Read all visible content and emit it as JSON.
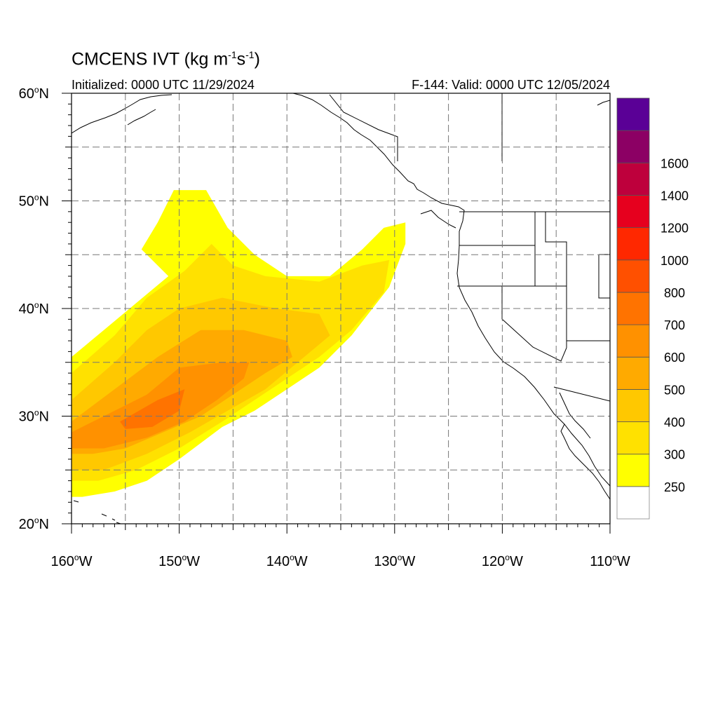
{
  "header": {
    "title_prefix": "CMCENS IVT (kg m",
    "title_exp1": "-1",
    "title_mid": "s",
    "title_exp2": "-1",
    "title_suffix": ")",
    "initialized": "Initialized: 0000 UTC 11/29/2024",
    "valid": "F-144: Valid: 0000 UTC 12/05/2024"
  },
  "axes": {
    "lon_labels": [
      "160",
      "150",
      "140",
      "130",
      "120",
      "110"
    ],
    "lon_suffix": "W",
    "lat_labels": [
      "60",
      "50",
      "40",
      "30",
      "20"
    ],
    "lat_suffix": "N",
    "degree": "o",
    "lon_range": [
      -160,
      -110
    ],
    "lat_range": [
      20,
      60
    ],
    "grid": true
  },
  "colorbar": {
    "labels": [
      "250",
      "300",
      "400",
      "500",
      "600",
      "700",
      "800",
      "1000",
      "1200",
      "1400",
      "1600"
    ],
    "colors": [
      "#ffffff",
      "#ffff00",
      "#ffe100",
      "#ffc800",
      "#ffaa00",
      "#ff9100",
      "#ff7300",
      "#ff5000",
      "#ff2800",
      "#e6001e",
      "#be003c",
      "#8c0064",
      "#5a0096"
    ]
  },
  "ivt_field": {
    "levels": [
      250,
      300,
      400,
      500,
      600,
      700
    ],
    "contours": [
      [
        [
          -160,
          35.5
        ],
        [
          -157,
          38
        ],
        [
          -154,
          40.5
        ],
        [
          -151,
          43
        ],
        [
          -153.5,
          45.5
        ],
        [
          -152,
          48
        ],
        [
          -150.5,
          51
        ],
        [
          -147.5,
          51
        ],
        [
          -145.5,
          47.5
        ],
        [
          -143,
          45
        ],
        [
          -140,
          43
        ],
        [
          -136,
          43
        ],
        [
          -133,
          45.5
        ],
        [
          -131,
          47.5
        ],
        [
          -129,
          48
        ],
        [
          -129,
          46
        ],
        [
          -130.5,
          42
        ],
        [
          -134,
          37.5
        ],
        [
          -137,
          34.5
        ],
        [
          -140,
          32.5
        ],
        [
          -143,
          30.5
        ],
        [
          -146,
          29
        ],
        [
          -150,
          26
        ],
        [
          -153,
          24
        ],
        [
          -156,
          23
        ],
        [
          -159,
          22.5
        ],
        [
          -160,
          22.5
        ]
      ],
      [
        [
          -160,
          34
        ],
        [
          -156,
          37.5
        ],
        [
          -153,
          41
        ],
        [
          -149.5,
          43.5
        ],
        [
          -147,
          46
        ],
        [
          -145,
          44
        ],
        [
          -142,
          43
        ],
        [
          -137,
          42.5
        ],
        [
          -133,
          44
        ],
        [
          -130.5,
          44.5
        ],
        [
          -131,
          41.5
        ],
        [
          -134,
          38
        ],
        [
          -137,
          35.5
        ],
        [
          -140,
          33.5
        ],
        [
          -143,
          31.5
        ],
        [
          -146,
          29.5
        ],
        [
          -150,
          27
        ],
        [
          -154,
          25
        ],
        [
          -157.5,
          24
        ],
        [
          -160,
          24
        ]
      ],
      [
        [
          -160,
          31.5
        ],
        [
          -156,
          35
        ],
        [
          -153,
          38
        ],
        [
          -150,
          40
        ],
        [
          -146,
          41
        ],
        [
          -141,
          40
        ],
        [
          -137,
          39.5
        ],
        [
          -136,
          37.5
        ],
        [
          -139,
          35
        ],
        [
          -142,
          32.5
        ],
        [
          -145.5,
          30.5
        ],
        [
          -149,
          28.5
        ],
        [
          -153,
          26.5
        ],
        [
          -157,
          25
        ],
        [
          -160,
          25
        ]
      ],
      [
        [
          -160,
          29.5
        ],
        [
          -156,
          32.5
        ],
        [
          -152,
          35.5
        ],
        [
          -148,
          38
        ],
        [
          -144,
          38
        ],
        [
          -140,
          37
        ],
        [
          -139.5,
          35.5
        ],
        [
          -142,
          34
        ],
        [
          -145,
          32
        ],
        [
          -148,
          30
        ],
        [
          -151.5,
          28.5
        ],
        [
          -155,
          27
        ],
        [
          -158,
          26.5
        ],
        [
          -160,
          26.5
        ]
      ],
      [
        [
          -160,
          28.5
        ],
        [
          -157,
          30
        ],
        [
          -153,
          32
        ],
        [
          -150,
          34.5
        ],
        [
          -146,
          35
        ],
        [
          -143.5,
          35
        ],
        [
          -144,
          33.5
        ],
        [
          -146.5,
          31.5
        ],
        [
          -149.5,
          29.5
        ],
        [
          -153,
          28
        ],
        [
          -157,
          27
        ],
        [
          -160,
          27
        ]
      ],
      [
        [
          -155.5,
          29.5
        ],
        [
          -152,
          31.5
        ],
        [
          -149.5,
          32.5
        ],
        [
          -150,
          30.5
        ],
        [
          -152.5,
          29
        ],
        [
          -155,
          28.8
        ]
      ]
    ]
  }
}
